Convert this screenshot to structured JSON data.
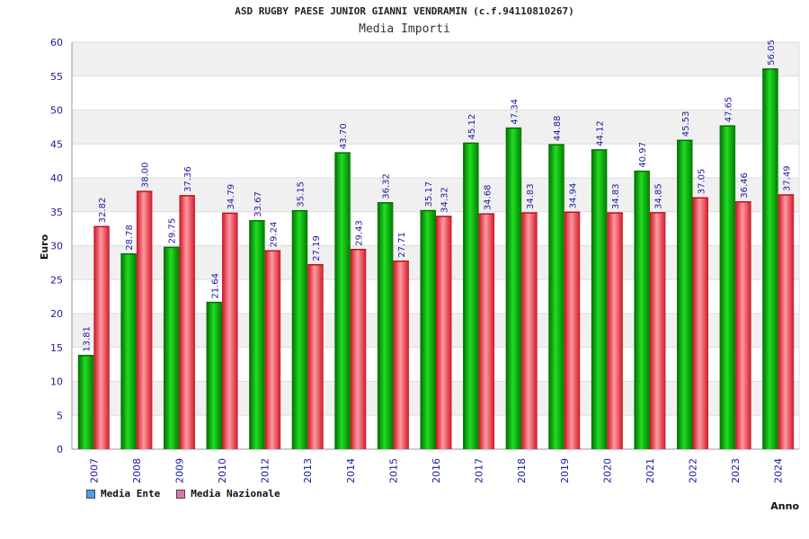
{
  "chart_data": {
    "type": "bar",
    "title": "ASD RUGBY PAESE JUNIOR GIANNI VENDRAMIN (c.f.94110810267)",
    "subtitle": "Media Importi",
    "xlabel": "Anno",
    "ylabel": "Euro",
    "ylim": [
      0,
      60
    ],
    "ytick_step": 5,
    "grid": true,
    "legend_position": "bottom-left",
    "categories": [
      "2007",
      "2008",
      "2009",
      "2010",
      "2012",
      "2013",
      "2014",
      "2015",
      "2016",
      "2017",
      "2018",
      "2019",
      "2020",
      "2021",
      "2022",
      "2023",
      "2024"
    ],
    "series": [
      {
        "name": "Media Ente",
        "color": "#0a9a0a",
        "legend_color": "#5599ee",
        "values": [
          13.81,
          28.78,
          29.75,
          21.64,
          33.67,
          35.15,
          43.7,
          36.32,
          35.17,
          45.12,
          47.34,
          44.88,
          44.12,
          40.97,
          45.53,
          47.65,
          56.05
        ],
        "labels": [
          "13.81",
          "28.78",
          "29.75",
          "21.64",
          "33.67",
          "35.15",
          "43.70",
          "36.32",
          "35.17",
          "45.12",
          "47.34",
          "44.88",
          "44.12",
          "40.97",
          "45.53",
          "47.65",
          "56.05"
        ]
      },
      {
        "name": "Media Nazionale",
        "color": "#e52530",
        "legend_color": "#dd77aa",
        "values": [
          32.82,
          38.0,
          37.36,
          34.79,
          29.24,
          27.19,
          29.43,
          27.71,
          34.32,
          34.68,
          34.83,
          34.94,
          34.83,
          34.85,
          37.05,
          36.46,
          37.49
        ],
        "labels": [
          "32.82",
          "38.00",
          "37.36",
          "34.79",
          "29.24",
          "27.19",
          "29.43",
          "27.71",
          "34.32",
          "34.68",
          "34.83",
          "34.94",
          "34.83",
          "34.85",
          "37.05",
          "36.46",
          "37.49"
        ]
      }
    ]
  }
}
